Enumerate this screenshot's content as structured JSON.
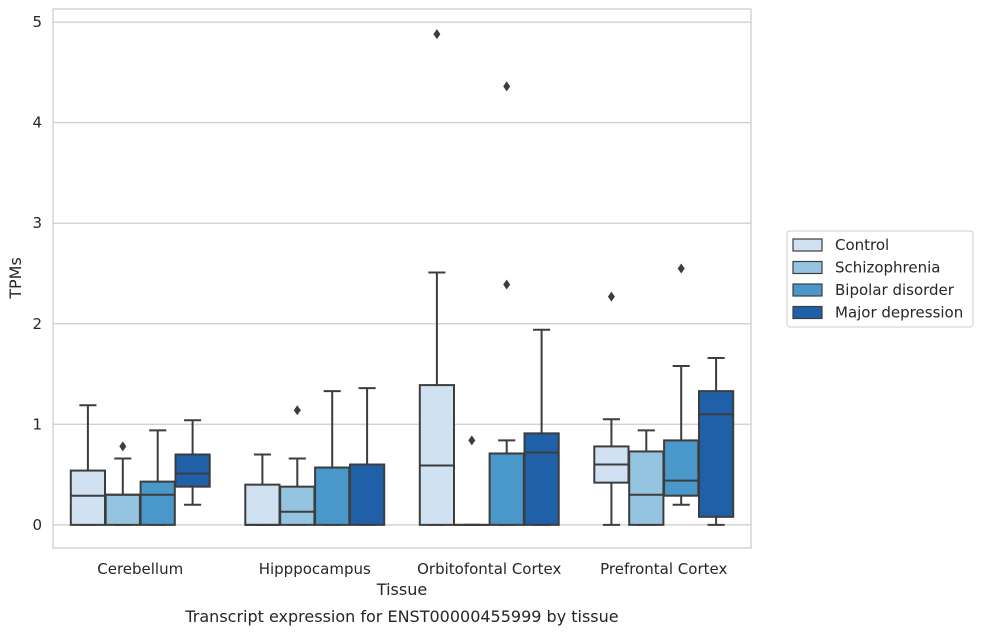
{
  "chart_data": {
    "type": "box",
    "caption": "Transcript expression for ENST00000455999 by tissue",
    "xlabel": "Tissue",
    "ylabel": "TPMs",
    "ylim": [
      -0.23,
      5.13
    ],
    "yticks": [
      0,
      1,
      2,
      3,
      4,
      5
    ],
    "grid": true,
    "legend_position": "right",
    "categories": [
      "Cerebellum",
      "Hipppocampus",
      "Orbitofontal Cortex",
      "Prefrontal Cortex"
    ],
    "series": [
      {
        "name": "Control",
        "color": "#d0e1f2",
        "boxes": [
          {
            "whisker_low": 0,
            "q1": 0,
            "median": 0.29,
            "q3": 0.54,
            "whisker_high": 1.19,
            "outliers": []
          },
          {
            "whisker_low": 0,
            "q1": 0,
            "median": 0,
            "q3": 0.4,
            "whisker_high": 0.7,
            "outliers": []
          },
          {
            "whisker_low": 0,
            "q1": 0,
            "median": 0.59,
            "q3": 1.39,
            "whisker_high": 2.51,
            "outliers": [
              4.88
            ]
          },
          {
            "whisker_low": 0,
            "q1": 0.42,
            "median": 0.6,
            "q3": 0.78,
            "whisker_high": 1.05,
            "outliers": [
              2.27
            ]
          }
        ]
      },
      {
        "name": "Schizophrenia",
        "color": "#94c4df",
        "boxes": [
          {
            "whisker_low": 0,
            "q1": 0,
            "median": 0.3,
            "q3": 0.3,
            "whisker_high": 0.66,
            "outliers": [
              0.78
            ]
          },
          {
            "whisker_low": 0,
            "q1": 0,
            "median": 0.13,
            "q3": 0.38,
            "whisker_high": 0.66,
            "outliers": [
              1.14
            ]
          },
          {
            "whisker_low": 0,
            "q1": 0,
            "median": 0,
            "q3": 0,
            "whisker_high": 0,
            "outliers": [
              0.84
            ]
          },
          {
            "whisker_low": 0,
            "q1": 0,
            "median": 0.3,
            "q3": 0.73,
            "whisker_high": 0.94,
            "outliers": []
          }
        ]
      },
      {
        "name": "Bipolar disorder",
        "color": "#4a98c9",
        "boxes": [
          {
            "whisker_low": 0,
            "q1": 0,
            "median": 0.3,
            "q3": 0.43,
            "whisker_high": 0.94,
            "outliers": []
          },
          {
            "whisker_low": 0,
            "q1": 0,
            "median": 0.57,
            "q3": 0.57,
            "whisker_high": 1.33,
            "outliers": []
          },
          {
            "whisker_low": 0,
            "q1": 0,
            "median": 0.71,
            "q3": 0.71,
            "whisker_high": 0.84,
            "outliers": [
              2.39,
              4.36
            ]
          },
          {
            "whisker_low": 0.2,
            "q1": 0.29,
            "median": 0.44,
            "q3": 0.84,
            "whisker_high": 1.58,
            "outliers": [
              2.55
            ]
          }
        ]
      },
      {
        "name": "Major depression",
        "color": "#2060a8",
        "boxes": [
          {
            "whisker_low": 0.2,
            "q1": 0.38,
            "median": 0.51,
            "q3": 0.7,
            "whisker_high": 1.04,
            "outliers": []
          },
          {
            "whisker_low": 0,
            "q1": 0,
            "median": 0.6,
            "q3": 0.6,
            "whisker_high": 1.36,
            "outliers": []
          },
          {
            "whisker_low": 0,
            "q1": 0,
            "median": 0.72,
            "q3": 0.91,
            "whisker_high": 1.94,
            "outliers": []
          },
          {
            "whisker_low": 0,
            "q1": 0.08,
            "median": 1.1,
            "q3": 1.33,
            "whisker_high": 1.66,
            "outliers": []
          }
        ]
      }
    ]
  }
}
